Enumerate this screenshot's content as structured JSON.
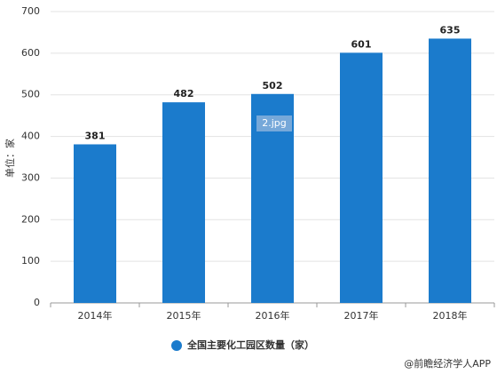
{
  "chart_data": {
    "type": "bar",
    "y_label": "单位：家",
    "categories": [
      "2014年",
      "2015年",
      "2016年",
      "2017年",
      "2018年"
    ],
    "series": [
      {
        "name": "全国主要化工园区数量（家）",
        "color": "#1b7bcc",
        "values": [
          381,
          482,
          502,
          601,
          635
        ]
      }
    ],
    "ylim": [
      0,
      700
    ],
    "yticks": [
      0,
      100,
      200,
      300,
      400,
      500,
      600,
      700
    ],
    "grid": true,
    "annotations": [
      "2.jpg"
    ],
    "source": "@前瞻经济学人APP"
  }
}
